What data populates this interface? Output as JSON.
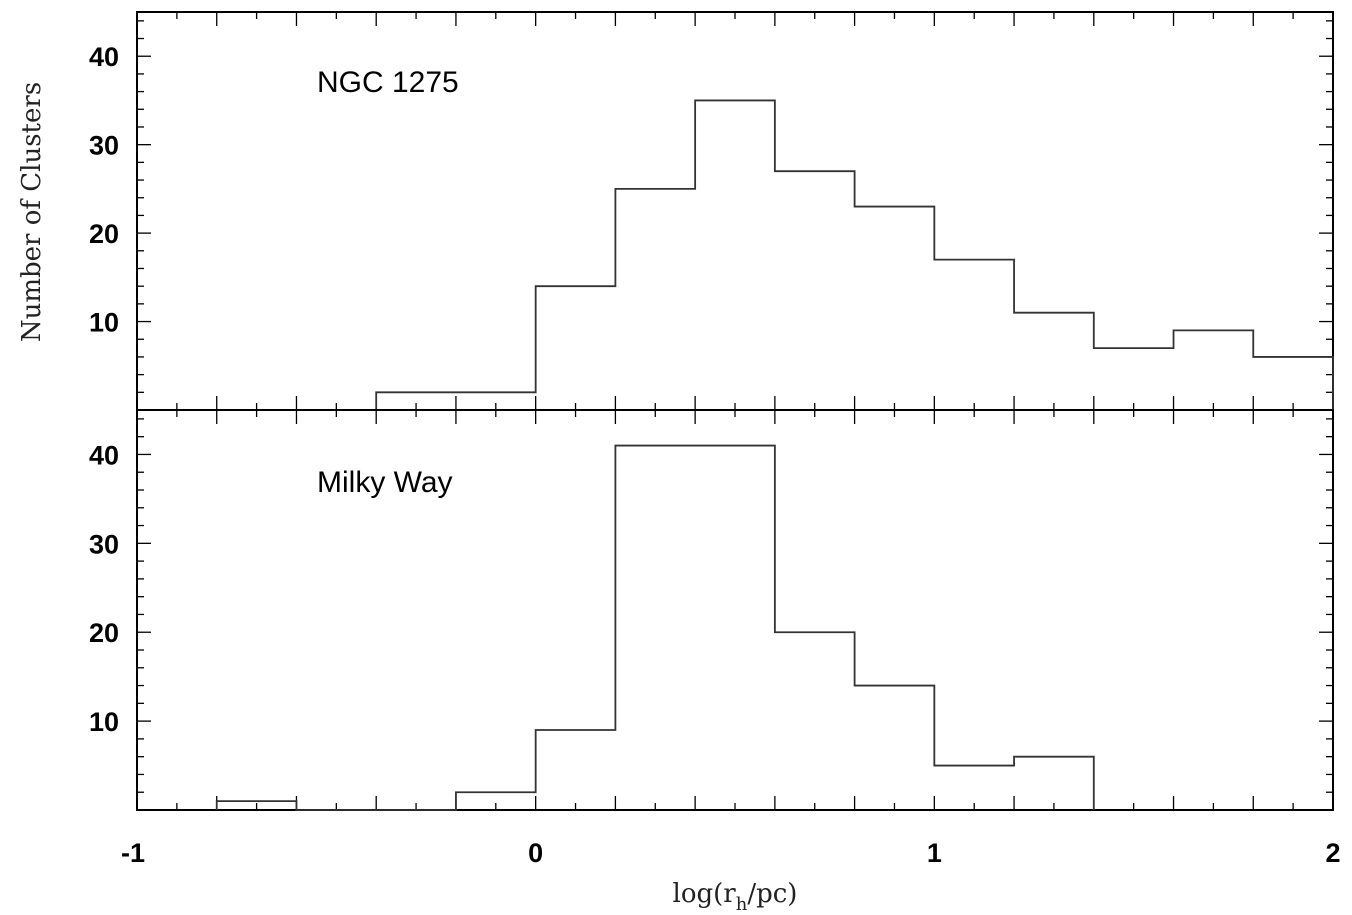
{
  "chart_data": {
    "type": "bar",
    "xlabel_prefix": "log(r",
    "xlabel_sub": "h",
    "xlabel_suffix": "/pc)",
    "ylabel": "Number of Clusters",
    "xlim": [
      -1,
      2
    ],
    "x_ticks": [
      "-1",
      "0",
      "1",
      "2"
    ],
    "ylim": [
      0,
      45
    ],
    "y_ticks": [
      "10",
      "20",
      "30",
      "40"
    ],
    "panels": [
      {
        "label": "NGC 1275",
        "bin_edges": [
          -0.4,
          -0.2,
          0.0,
          0.2,
          0.4,
          0.6,
          0.8,
          1.0,
          1.2,
          1.4,
          1.6,
          1.8,
          2.0
        ],
        "values": [
          2,
          2,
          14,
          25,
          35,
          27,
          23,
          17,
          11,
          7,
          9,
          6
        ]
      },
      {
        "label": "Milky Way",
        "bin_edges": [
          -0.8,
          -0.6,
          -0.4,
          -0.2,
          0.0,
          0.2,
          0.4,
          0.6,
          0.8,
          1.0,
          1.2,
          1.4
        ],
        "values": [
          1,
          0,
          0,
          2,
          9,
          41,
          41,
          20,
          14,
          5,
          6
        ]
      }
    ]
  }
}
